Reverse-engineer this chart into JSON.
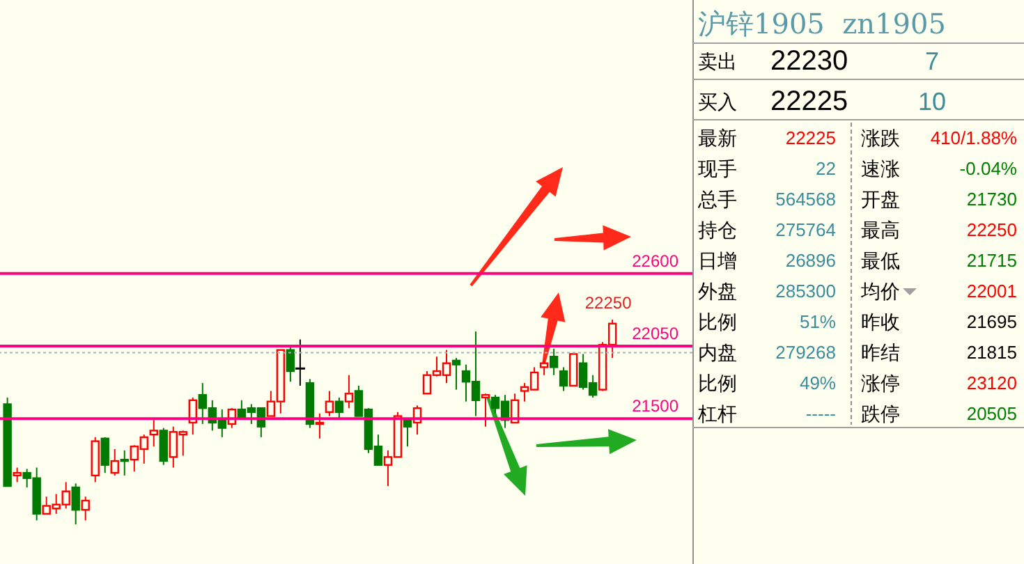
{
  "chart_data": [
    {
      "type": "candlestick",
      "categories": [
        null,
        null,
        null,
        null,
        null,
        null,
        null,
        null,
        null,
        null,
        null,
        null,
        null,
        null,
        null,
        null,
        null,
        null,
        null,
        null,
        null,
        null,
        null,
        null,
        null,
        null,
        null,
        null,
        null,
        null,
        null,
        null,
        null,
        null,
        null,
        null,
        null,
        null,
        null,
        null,
        null,
        null,
        null,
        null,
        null,
        null,
        null,
        null,
        null,
        null,
        null,
        null,
        null,
        null,
        null,
        null,
        null,
        null,
        null,
        null,
        null,
        null,
        null
      ],
      "ohlc": [
        [
          21610,
          21660,
          20990,
          20990
        ],
        [
          21070,
          21130,
          21020,
          21090
        ],
        [
          21090,
          21120,
          20980,
          21050
        ],
        [
          21050,
          21130,
          20730,
          20780
        ],
        [
          20780,
          20910,
          20780,
          20840
        ],
        [
          20820,
          20930,
          20780,
          20850
        ],
        [
          20850,
          21020,
          20820,
          20950
        ],
        [
          20980,
          21010,
          20700,
          20810
        ],
        [
          20810,
          20910,
          20730,
          20880
        ],
        [
          21070,
          21360,
          21020,
          21330
        ],
        [
          21350,
          21360,
          21090,
          21150
        ],
        [
          21090,
          21270,
          21070,
          21180
        ],
        [
          21190,
          21260,
          21070,
          21180
        ],
        [
          21190,
          21300,
          21100,
          21290
        ],
        [
          21270,
          21380,
          21160,
          21360
        ],
        [
          21380,
          21490,
          21290,
          21410
        ],
        [
          21410,
          21430,
          21150,
          21180
        ],
        [
          21210,
          21440,
          21130,
          21400
        ],
        [
          21380,
          21410,
          21220,
          21400
        ],
        [
          21470,
          21660,
          21380,
          21640
        ],
        [
          21680,
          21770,
          21460,
          21580
        ],
        [
          21580,
          21640,
          21410,
          21470
        ],
        [
          21490,
          21570,
          21360,
          21430
        ],
        [
          21460,
          21580,
          21430,
          21570
        ],
        [
          21570,
          21640,
          21500,
          21500
        ],
        [
          21580,
          21610,
          21460,
          21550
        ],
        [
          21580,
          21580,
          21360,
          21440
        ],
        [
          21520,
          21710,
          21520,
          21630
        ],
        [
          21630,
          22020,
          21540,
          22020
        ],
        [
          22020,
          22060,
          21780,
          21860
        ],
        [
          21880,
          22100,
          21750,
          21880
        ],
        [
          21770,
          21800,
          21430,
          21460
        ],
        [
          21460,
          21540,
          21350,
          21470
        ],
        [
          21550,
          21710,
          21520,
          21630
        ],
        [
          21630,
          21660,
          21500,
          21550
        ],
        [
          21630,
          21830,
          21580,
          21690
        ],
        [
          21710,
          21750,
          21520,
          21520
        ],
        [
          21570,
          21580,
          21240,
          21270
        ],
        [
          21290,
          21380,
          21150,
          21150
        ],
        [
          21150,
          21260,
          20990,
          21210
        ],
        [
          21210,
          21550,
          21210,
          21520
        ],
        [
          21500,
          21500,
          21290,
          21440
        ],
        [
          21470,
          21600,
          21380,
          21580
        ],
        [
          21690,
          21860,
          21690,
          21830
        ],
        [
          21830,
          21970,
          21820,
          21860
        ],
        [
          21830,
          22020,
          21770,
          21920
        ],
        [
          21940,
          21960,
          21720,
          21910
        ],
        [
          21860,
          21910,
          21630,
          21780
        ],
        [
          21780,
          22160,
          21520,
          21640
        ],
        [
          21660,
          21690,
          21440,
          21680
        ],
        [
          21660,
          21680,
          21540,
          21580
        ],
        [
          21630,
          21680,
          21430,
          21490
        ],
        [
          21470,
          21690,
          21470,
          21640
        ],
        [
          21710,
          21770,
          21630,
          21740
        ],
        [
          21720,
          21890,
          21720,
          21850
        ],
        [
          21890,
          21940,
          21830,
          21920
        ],
        [
          21970,
          22030,
          21830,
          21890
        ],
        [
          21860,
          21890,
          21710,
          21750
        ],
        [
          21750,
          21990,
          21750,
          21990
        ],
        [
          21920,
          21990,
          21720,
          21740
        ],
        [
          21770,
          21830,
          21660,
          21680
        ],
        [
          21720,
          22080,
          21710,
          22060
        ],
        [
          22060,
          22250,
          21960,
          22220
        ]
      ],
      "colors": [
        "#007a00",
        "#ff0000",
        "#007a00",
        "#007a00",
        "#ff0000",
        "#ff0000",
        "#ff0000",
        "#007a00",
        "#ff0000",
        "#ff0000",
        "#007a00",
        "#ff0000",
        "#007a00",
        "#ff0000",
        "#ff0000",
        "#ff0000",
        "#007a00",
        "#ff0000",
        "#ff0000",
        "#ff0000",
        "#007a00",
        "#007a00",
        "#007a00",
        "#ff0000",
        "#007a00",
        "#007a00",
        "#007a00",
        "#ff0000",
        "#ff0000",
        "#007a00",
        "#000000",
        "#007a00",
        "#ff0000",
        "#ff0000",
        "#007a00",
        "#ff0000",
        "#007a00",
        "#007a00",
        "#007a00",
        "#ff0000",
        "#ff0000",
        "#007a00",
        "#ff0000",
        "#ff0000",
        "#ff0000",
        "#ff0000",
        "#007a00",
        "#007a00",
        "#007a00",
        "#ff0000",
        "#007a00",
        "#007a00",
        "#ff0000",
        "#ff0000",
        "#ff0000",
        "#ff0000",
        "#007a00",
        "#007a00",
        "#ff0000",
        "#007a00",
        "#007a00",
        "#ff0000",
        "#ff0000"
      ],
      "ylim": [
        20400,
        24670
      ],
      "yticks": [
        21500,
        22050,
        22600
      ],
      "ref_lines": [
        {
          "axis": "y",
          "value": 22600,
          "color": "#ff0080"
        },
        {
          "axis": "y",
          "value": 22050,
          "color": "#ff0080"
        },
        {
          "axis": "y",
          "value": 21500,
          "color": "#ff0080"
        },
        {
          "axis": "y",
          "value": 22000,
          "color": "#b0b0b0",
          "line_style": "dotted"
        }
      ],
      "annotations": [
        {
          "text": "22250",
          "y": 22250
        }
      ]
    },
    {
      "type": "other",
      "title": "沪锌1905  zn1905",
      "categories": [
        "卖出",
        "买入",
        "最新",
        "现手",
        "总手",
        "持仓",
        "日增",
        "外盘",
        "比例",
        "内盘",
        "比例",
        "杠杆",
        "涨跌",
        "速涨",
        "开盘",
        "最高",
        "最低",
        "均价",
        "昨收",
        "昨结",
        "涨停",
        "跌停"
      ],
      "annotations": [
        "22230",
        "7",
        "22225",
        "10",
        "22225",
        "22",
        "564568",
        "275764",
        "26896",
        "285300",
        "51%",
        "279268",
        "49%",
        "-----",
        "410/1.88%",
        "-0.04%",
        "21730",
        "22250",
        "21715",
        "22001",
        "21695",
        "21815",
        "23120",
        "20505"
      ],
      "colors": [
        "#000000",
        "#3c8c9c",
        "#000000",
        "#3c8c9c",
        "#ff0000",
        "#3c8c9c",
        "#3c8c9c",
        "#3c8c9c",
        "#3c8c9c",
        "#3c8c9c",
        "#3c8c9c",
        "#3c8c9c",
        "#3c8c9c",
        "#3c8c9c",
        "#ff0000",
        "#008000",
        "#008000",
        "#ff0000",
        "#008000",
        "#ff0000",
        "#000000",
        "#000000",
        "#ff0000",
        "#008000"
      ]
    }
  ]
}
